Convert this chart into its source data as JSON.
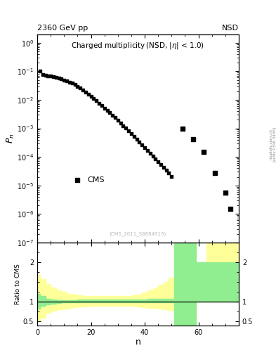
{
  "header_left": "2360 GeV pp",
  "header_right": "NSD",
  "xlabel": "n",
  "ylabel_top": "P$_n$",
  "ylabel_bottom": "Ratio to CMS",
  "legend_label": "CMS",
  "watermark": "(CMS_2011_S8884919)",
  "arxiv_text": "[arXiv:1306.3436]",
  "mc_url": "mcplots.cern.ch",
  "data_x": [
    1,
    2,
    3,
    4,
    5,
    6,
    7,
    8,
    9,
    10,
    11,
    12,
    13,
    14,
    15,
    16,
    17,
    18,
    19,
    20,
    21,
    22,
    23,
    24,
    25,
    26,
    27,
    28,
    29,
    30,
    31,
    32,
    33,
    34,
    35,
    36,
    37,
    38,
    39,
    40,
    41,
    42,
    43,
    44,
    45,
    46,
    47,
    48,
    49,
    50,
    54,
    58,
    62,
    66,
    70,
    72
  ],
  "data_y": [
    0.1,
    0.075,
    0.072,
    0.07,
    0.068,
    0.065,
    0.062,
    0.058,
    0.054,
    0.05,
    0.046,
    0.042,
    0.038,
    0.034,
    0.03,
    0.026,
    0.022,
    0.019,
    0.016,
    0.013,
    0.011,
    0.0092,
    0.0076,
    0.0063,
    0.0052,
    0.0043,
    0.0035,
    0.0029,
    0.0024,
    0.0019,
    0.00156,
    0.00126,
    0.00101,
    0.00081,
    0.00065,
    0.00052,
    0.00042,
    0.00034,
    0.00027,
    0.00021,
    0.00017,
    0.000135,
    0.000108,
    8.6e-05,
    6.8e-05,
    5.4e-05,
    4.3e-05,
    3.4e-05,
    2.7e-05,
    2.1e-05,
    0.00095,
    0.00042,
    0.00015,
    2.8e-05,
    5.5e-06,
    1.5e-06
  ],
  "ratio_x": [
    0,
    1,
    3,
    5,
    7,
    9,
    11,
    13,
    15,
    17,
    19,
    21,
    23,
    25,
    27,
    29,
    31,
    33,
    35,
    37,
    39,
    41,
    43,
    45,
    47,
    49,
    51,
    53,
    55,
    57,
    59,
    61,
    63,
    65,
    67,
    69,
    71,
    73,
    75
  ],
  "ratio_green_lo": [
    0.82,
    0.88,
    0.93,
    0.95,
    0.965,
    0.97,
    0.97,
    0.97,
    0.97,
    0.97,
    0.97,
    0.97,
    0.97,
    0.975,
    0.975,
    0.975,
    0.975,
    0.975,
    0.975,
    0.975,
    0.975,
    0.975,
    0.975,
    0.975,
    0.975,
    0.975,
    0.35,
    0.35,
    0.35,
    0.35,
    1.0,
    1.0,
    1.0,
    1.0,
    1.0,
    1.0,
    1.0,
    1.0,
    1.0
  ],
  "ratio_green_hi": [
    1.2,
    1.13,
    1.07,
    1.05,
    1.035,
    1.03,
    1.03,
    1.03,
    1.04,
    1.04,
    1.04,
    1.04,
    1.04,
    1.04,
    1.04,
    1.04,
    1.04,
    1.04,
    1.04,
    1.05,
    1.05,
    1.06,
    1.06,
    1.07,
    1.07,
    1.07,
    2.5,
    2.5,
    2.5,
    2.5,
    2.0,
    2.0,
    2.0,
    2.0,
    2.0,
    2.0,
    2.0,
    2.0,
    2.0
  ],
  "ratio_yellow_lo": [
    0.5,
    0.58,
    0.7,
    0.76,
    0.8,
    0.82,
    0.84,
    0.86,
    0.87,
    0.875,
    0.88,
    0.88,
    0.885,
    0.89,
    0.89,
    0.89,
    0.89,
    0.89,
    0.88,
    0.87,
    0.86,
    0.84,
    0.83,
    0.82,
    0.8,
    0.78,
    0.35,
    0.35,
    0.35,
    0.35,
    1.0,
    1.0,
    1.25,
    1.25,
    1.25,
    1.25,
    1.25,
    1.25,
    1.25
  ],
  "ratio_yellow_hi": [
    1.68,
    1.56,
    1.44,
    1.36,
    1.28,
    1.24,
    1.2,
    1.18,
    1.16,
    1.145,
    1.13,
    1.13,
    1.13,
    1.13,
    1.13,
    1.135,
    1.14,
    1.145,
    1.155,
    1.18,
    1.22,
    1.28,
    1.34,
    1.42,
    1.5,
    1.6,
    2.5,
    2.5,
    2.5,
    2.5,
    2.0,
    2.0,
    2.5,
    2.5,
    2.5,
    2.5,
    2.5,
    2.5,
    2.5
  ],
  "color_green": "#90ee90",
  "color_yellow": "#ffff99",
  "color_data": "black",
  "xlim": [
    0,
    75
  ],
  "ylim_top_lo": 1e-07,
  "ylim_top_hi": 2.0,
  "ylim_bottom_lo": 0.38,
  "ylim_bottom_hi": 2.5
}
